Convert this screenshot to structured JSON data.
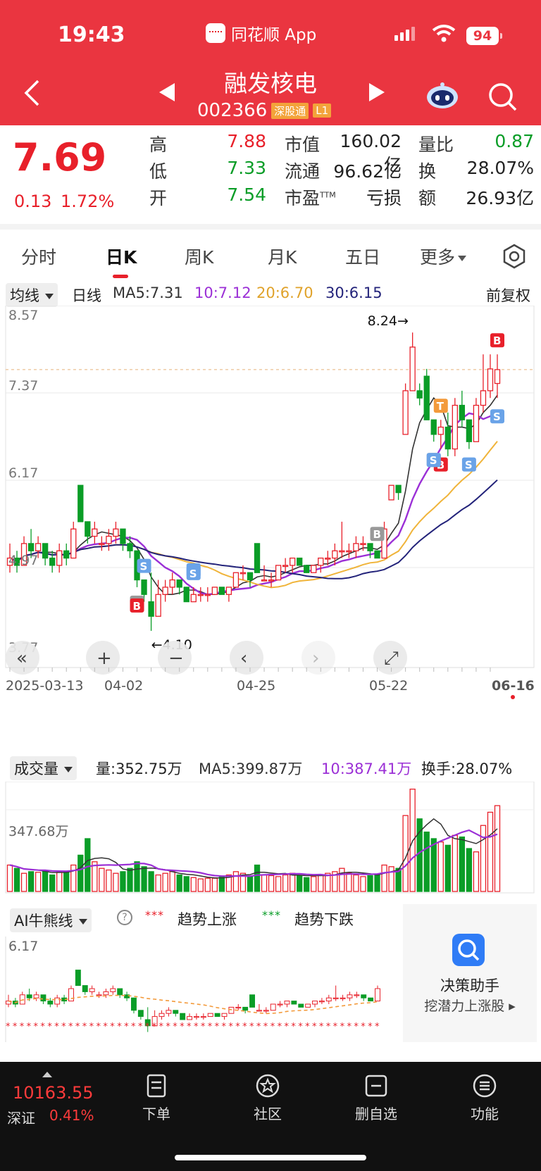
{
  "status": {
    "time": "19:43",
    "app_name": "同花顺 App",
    "battery": "94"
  },
  "header": {
    "stock_name": "融发核电",
    "stock_code": "002366",
    "tag1": "深股通",
    "tag2": "L1"
  },
  "quote": {
    "price": "7.69",
    "change": "0.13",
    "change_pct": "1.72%",
    "high_label": "高",
    "high": "7.88",
    "low_label": "低",
    "low": "7.33",
    "open_label": "开",
    "open": "7.54",
    "mcap_label": "市值",
    "mcap": "160.02亿",
    "float_label": "流通",
    "float": "96.62亿",
    "pe_label": "市盈",
    "pe_sup": "TTM",
    "pe": "亏损",
    "vr_label": "量比",
    "vr": "0.87",
    "turn_label": "换",
    "turn": "28.07%",
    "amt_label": "额",
    "amt": "26.93亿"
  },
  "tabs": [
    "分时",
    "日K",
    "周K",
    "月K",
    "五日",
    "更多"
  ],
  "ma_row": {
    "selector": "均线",
    "period": "日线",
    "ma5": "MA5:7.31",
    "ma10": "10:7.12",
    "ma20": "20:6.70",
    "ma30": "30:6.15",
    "adjust": "前复权"
  },
  "colors": {
    "up": "#e8202a",
    "down": "#0a9d27",
    "ma5": "#333333",
    "ma10": "#9b2fd6",
    "ma20": "#f0b43a",
    "ma30": "#23237a"
  },
  "chart_data": {
    "type": "candlestick",
    "y_labels": [
      "8.57",
      "7.37",
      "6.17",
      "4.97",
      "3.77"
    ],
    "ylim": [
      3.77,
      8.57
    ],
    "x_labels": [
      "2025-03-13",
      "04-02",
      "04-25",
      "05-22",
      "06-16"
    ],
    "high_annotation": "8.24→",
    "low_annotation": "←4.10",
    "markers": [
      "S",
      "S",
      "B",
      "B",
      "S",
      "B",
      "B",
      "B",
      "T",
      "S",
      "S",
      "S",
      "B"
    ],
    "candles": [
      [
        5.0,
        5.3,
        4.9,
        5.1
      ],
      [
        5.1,
        5.2,
        4.9,
        5.0
      ],
      [
        5.0,
        5.4,
        5.0,
        5.3
      ],
      [
        5.3,
        5.5,
        5.1,
        5.2
      ],
      [
        5.2,
        5.4,
        5.1,
        5.3
      ],
      [
        5.3,
        5.3,
        5.0,
        5.1
      ],
      [
        5.1,
        5.2,
        4.9,
        5.0
      ],
      [
        5.0,
        5.3,
        4.9,
        5.2
      ],
      [
        5.2,
        5.3,
        5.0,
        5.1
      ],
      [
        5.1,
        5.6,
        5.1,
        5.5
      ],
      [
        6.1,
        6.1,
        5.6,
        5.6
      ],
      [
        5.6,
        5.6,
        5.3,
        5.4
      ],
      [
        5.4,
        5.6,
        5.3,
        5.5
      ],
      [
        5.3,
        5.4,
        5.2,
        5.3
      ],
      [
        5.3,
        5.5,
        5.2,
        5.4
      ],
      [
        5.4,
        5.6,
        5.3,
        5.5
      ],
      [
        5.5,
        5.5,
        5.2,
        5.3
      ],
      [
        5.3,
        5.4,
        5.1,
        5.2
      ],
      [
        5.2,
        5.2,
        4.7,
        4.8
      ],
      [
        4.8,
        4.8,
        4.5,
        4.6
      ],
      [
        4.5,
        4.9,
        4.1,
        4.3
      ],
      [
        4.3,
        4.8,
        4.3,
        4.6
      ],
      [
        4.6,
        4.8,
        4.5,
        4.7
      ],
      [
        4.7,
        4.9,
        4.6,
        4.8
      ],
      [
        4.8,
        4.8,
        4.6,
        4.7
      ],
      [
        4.7,
        4.7,
        4.5,
        4.5
      ],
      [
        4.5,
        4.7,
        4.5,
        4.6
      ],
      [
        4.6,
        4.7,
        4.5,
        4.6
      ],
      [
        4.6,
        4.7,
        4.5,
        4.6
      ],
      [
        4.6,
        4.7,
        4.6,
        4.7
      ],
      [
        4.7,
        4.7,
        4.6,
        4.6
      ],
      [
        4.6,
        4.7,
        4.5,
        4.7
      ],
      [
        4.7,
        4.9,
        4.7,
        4.9
      ],
      [
        4.9,
        5.0,
        4.8,
        4.9
      ],
      [
        4.9,
        4.9,
        4.7,
        4.8
      ],
      [
        5.3,
        5.3,
        4.9,
        4.9
      ],
      [
        4.8,
        5.0,
        4.8,
        4.8
      ],
      [
        4.8,
        4.9,
        4.7,
        4.8
      ],
      [
        4.8,
        5.0,
        4.8,
        5.0
      ],
      [
        5.0,
        5.1,
        4.9,
        5.0
      ],
      [
        5.0,
        5.1,
        4.9,
        5.1
      ],
      [
        5.1,
        5.1,
        5.0,
        5.0
      ],
      [
        5.0,
        5.0,
        4.9,
        4.9
      ],
      [
        4.9,
        5.0,
        4.9,
        5.0
      ],
      [
        5.0,
        5.1,
        4.9,
        5.1
      ],
      [
        5.1,
        5.2,
        5.0,
        5.1
      ],
      [
        5.1,
        5.3,
        5.0,
        5.2
      ],
      [
        5.2,
        5.6,
        5.1,
        5.2
      ],
      [
        5.2,
        5.3,
        5.1,
        5.2
      ],
      [
        5.2,
        5.4,
        5.1,
        5.3
      ],
      [
        5.3,
        5.4,
        5.2,
        5.3
      ],
      [
        5.3,
        5.3,
        5.1,
        5.2
      ],
      [
        5.2,
        5.2,
        5.1,
        5.1
      ],
      [
        5.1,
        5.6,
        5.1,
        5.5
      ],
      [
        5.9,
        6.1,
        5.9,
        6.1
      ],
      [
        6.1,
        6.1,
        5.9,
        6.0
      ],
      [
        6.8,
        7.5,
        6.8,
        7.4
      ],
      [
        7.4,
        8.2,
        7.4,
        8.0
      ],
      [
        7.4,
        7.5,
        7.2,
        7.3
      ],
      [
        7.6,
        7.7,
        7.0,
        7.0
      ],
      [
        7.0,
        7.0,
        6.7,
        6.8
      ],
      [
        6.8,
        7.0,
        6.6,
        6.9
      ],
      [
        6.9,
        7.1,
        6.5,
        6.6
      ],
      [
        6.6,
        7.3,
        6.5,
        7.2
      ],
      [
        7.2,
        7.4,
        6.9,
        7.0
      ],
      [
        7.0,
        7.0,
        6.6,
        6.7
      ],
      [
        6.7,
        7.3,
        6.7,
        7.2
      ],
      [
        7.2,
        7.9,
        7.1,
        7.4
      ],
      [
        7.4,
        7.9,
        7.3,
        7.7
      ],
      [
        7.5,
        7.9,
        7.3,
        7.69
      ]
    ]
  },
  "volume": {
    "selector": "成交量",
    "vol": "量:352.75万",
    "ma5": "MA5:399.87万",
    "ma10": "10:387.41万",
    "turnover": "换手:28.07%",
    "y_label": "347.68万"
  },
  "volume_data": {
    "bars": [
      80,
      70,
      55,
      60,
      58,
      62,
      50,
      58,
      60,
      80,
      110,
      160,
      90,
      70,
      65,
      55,
      60,
      70,
      90,
      75,
      60,
      50,
      55,
      60,
      50,
      45,
      42,
      38,
      40,
      40,
      45,
      50,
      60,
      55,
      45,
      80,
      50,
      48,
      45,
      50,
      55,
      48,
      42,
      45,
      50,
      55,
      60,
      70,
      55,
      50,
      45,
      48,
      52,
      80,
      75,
      70,
      230,
      310,
      220,
      180,
      160,
      150,
      140,
      170,
      165,
      130,
      120,
      200,
      240,
      260
    ]
  },
  "ai": {
    "selector": "AI牛熊线",
    "help": "?",
    "up_label": "趋势上涨",
    "down_label": "趋势下跌",
    "y_label": "6.17",
    "assistant_title": "决策助手",
    "assistant_sub": "挖潜力上涨股"
  },
  "footer": {
    "index_value": "10163.55",
    "index_name": "深证",
    "index_pct": "0.41%",
    "btn1": "下单",
    "btn2": "社区",
    "btn3": "删自选",
    "btn4": "功能"
  }
}
